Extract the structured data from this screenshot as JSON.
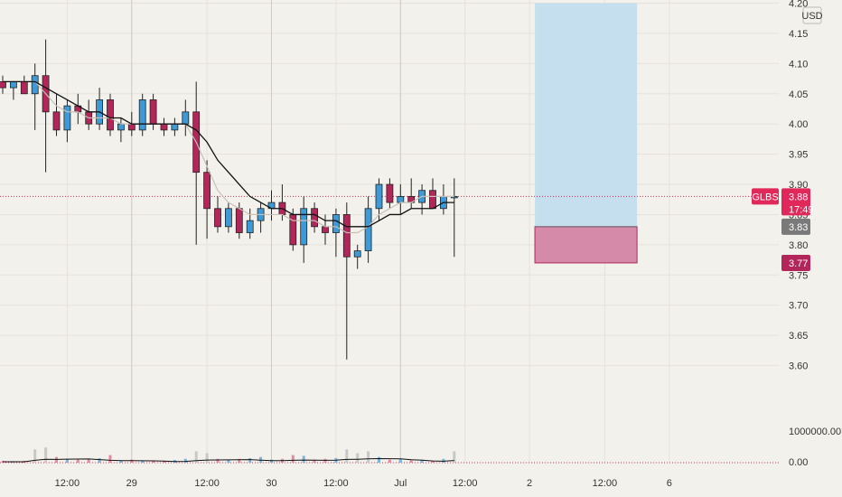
{
  "chart_data": {
    "type": "candlestick",
    "symbol": "GLBS",
    "currency": "USD",
    "colors": {
      "background": "#f3f1ec",
      "up": "#3d9ad6",
      "down": "#b3265a",
      "ma_long": "#111111",
      "ma_short": "#c9bfb5",
      "price_line": "#e0285a",
      "target_zone": "#c5dfee",
      "stop_zone": "#d68aa9",
      "volume_up": "#7bb5e0",
      "volume_down": "#e58aa5",
      "volume_neutral": "#c8c8c8"
    },
    "y_axis": {
      "min": 3.55,
      "max": 4.2,
      "ticks": [
        "4.20",
        "4.15",
        "4.10",
        "4.05",
        "4.00",
        "3.95",
        "3.90",
        "3.85",
        "3.80",
        "3.75",
        "3.70",
        "3.65",
        "3.60"
      ]
    },
    "volume_axis": {
      "ticks": [
        "1000000.00",
        "0.00"
      ]
    },
    "x_axis": {
      "ticks": [
        {
          "label": "12:00",
          "t": 6
        },
        {
          "label": "29",
          "t": 12
        },
        {
          "label": "12:00",
          "t": 19
        },
        {
          "label": "30",
          "t": 25
        },
        {
          "label": "12:00",
          "t": 31
        },
        {
          "label": "Jul",
          "t": 37
        },
        {
          "label": "12:00",
          "t": 43
        },
        {
          "label": "2",
          "t": 49
        },
        {
          "label": "12:00",
          "t": 56
        },
        {
          "label": "6",
          "t": 62
        }
      ],
      "session_lines": [
        12,
        25,
        37
      ]
    },
    "candles": [
      [
        4.07,
        4.08,
        4.05,
        4.06
      ],
      [
        4.06,
        4.07,
        4.04,
        4.07
      ],
      [
        4.07,
        4.08,
        4.05,
        4.05
      ],
      [
        4.05,
        4.1,
        3.99,
        4.08
      ],
      [
        4.08,
        4.14,
        3.92,
        4.02
      ],
      [
        4.02,
        4.05,
        3.98,
        3.99
      ],
      [
        3.99,
        4.04,
        3.97,
        4.03
      ],
      [
        4.03,
        4.05,
        4.0,
        4.02
      ],
      [
        4.02,
        4.04,
        3.99,
        4.0
      ],
      [
        4.0,
        4.06,
        3.99,
        4.04
      ],
      [
        4.04,
        4.05,
        3.98,
        3.99
      ],
      [
        3.99,
        4.01,
        3.97,
        4.0
      ],
      [
        4.0,
        4.02,
        3.98,
        3.99
      ],
      [
        3.99,
        4.05,
        3.98,
        4.04
      ],
      [
        4.04,
        4.05,
        3.99,
        4.0
      ],
      [
        4.0,
        4.01,
        3.98,
        3.99
      ],
      [
        3.99,
        4.01,
        3.98,
        4.0
      ],
      [
        4.0,
        4.04,
        3.98,
        4.02
      ],
      [
        4.02,
        4.07,
        3.8,
        3.92
      ],
      [
        3.92,
        3.94,
        3.81,
        3.86
      ],
      [
        3.86,
        3.88,
        3.82,
        3.83
      ],
      [
        3.83,
        3.87,
        3.82,
        3.86
      ],
      [
        3.86,
        3.87,
        3.81,
        3.82
      ],
      [
        3.82,
        3.86,
        3.81,
        3.84
      ],
      [
        3.84,
        3.87,
        3.82,
        3.86
      ],
      [
        3.86,
        3.89,
        3.84,
        3.87
      ],
      [
        3.87,
        3.9,
        3.84,
        3.85
      ],
      [
        3.85,
        3.86,
        3.79,
        3.8
      ],
      [
        3.8,
        3.88,
        3.77,
        3.86
      ],
      [
        3.86,
        3.87,
        3.82,
        3.83
      ],
      [
        3.83,
        3.85,
        3.8,
        3.82
      ],
      [
        3.82,
        3.86,
        3.78,
        3.85
      ],
      [
        3.85,
        3.87,
        3.61,
        3.78
      ],
      [
        3.78,
        3.8,
        3.76,
        3.79
      ],
      [
        3.79,
        3.88,
        3.77,
        3.86
      ],
      [
        3.86,
        3.91,
        3.84,
        3.9
      ],
      [
        3.9,
        3.91,
        3.86,
        3.87
      ],
      [
        3.87,
        3.9,
        3.85,
        3.88
      ],
      [
        3.88,
        3.91,
        3.86,
        3.87
      ],
      [
        3.87,
        3.9,
        3.85,
        3.89
      ],
      [
        3.89,
        3.91,
        3.86,
        3.86
      ],
      [
        3.86,
        3.9,
        3.85,
        3.88
      ],
      [
        3.88,
        3.91,
        3.78,
        3.88
      ]
    ],
    "volumes": [
      0.05,
      0.04,
      0.05,
      0.35,
      0.4,
      0.15,
      0.1,
      0.08,
      0.1,
      0.12,
      0.2,
      0.06,
      0.08,
      0.05,
      0.06,
      0.05,
      0.07,
      0.1,
      0.3,
      0.25,
      0.1,
      0.08,
      0.1,
      0.12,
      0.15,
      0.08,
      0.1,
      0.2,
      0.18,
      0.08,
      0.1,
      0.12,
      0.35,
      0.25,
      0.3,
      0.15,
      0.08,
      0.1,
      0.06,
      0.08,
      0.05,
      0.1,
      0.3
    ],
    "ma_long": [
      4.07,
      4.07,
      4.07,
      4.07,
      4.06,
      4.05,
      4.04,
      4.03,
      4.02,
      4.02,
      4.01,
      4.01,
      4.0,
      4.0,
      4.0,
      4.0,
      4.0,
      4.0,
      3.99,
      3.97,
      3.94,
      3.92,
      3.9,
      3.88,
      3.87,
      3.86,
      3.86,
      3.85,
      3.85,
      3.85,
      3.84,
      3.84,
      3.83,
      3.83,
      3.83,
      3.84,
      3.85,
      3.85,
      3.86,
      3.86,
      3.86,
      3.87,
      3.87
    ],
    "ma_short": [
      4.07,
      4.07,
      4.07,
      4.07,
      4.05,
      4.03,
      4.02,
      4.02,
      4.01,
      4.01,
      4.01,
      4.0,
      4.0,
      4.0,
      4.0,
      4.0,
      4.0,
      4.0,
      3.97,
      3.93,
      3.89,
      3.87,
      3.86,
      3.85,
      3.85,
      3.85,
      3.85,
      3.84,
      3.84,
      3.84,
      3.83,
      3.83,
      3.82,
      3.82,
      3.83,
      3.85,
      3.86,
      3.87,
      3.87,
      3.88,
      3.88,
      3.88,
      3.88
    ],
    "position": {
      "start_t": 49.5,
      "end_t": 59,
      "entry": 3.83,
      "target": 4.2,
      "stop": 3.77
    },
    "last_price": {
      "symbol_label": "GLBS",
      "price": "3.88",
      "value": 3.88,
      "countdown": "17:49"
    },
    "levels": [
      {
        "label": "3.83",
        "value": 3.83,
        "color": "#7a7a7a"
      },
      {
        "label": "3.77",
        "value": 3.77,
        "color": "#b3265a"
      }
    ]
  }
}
